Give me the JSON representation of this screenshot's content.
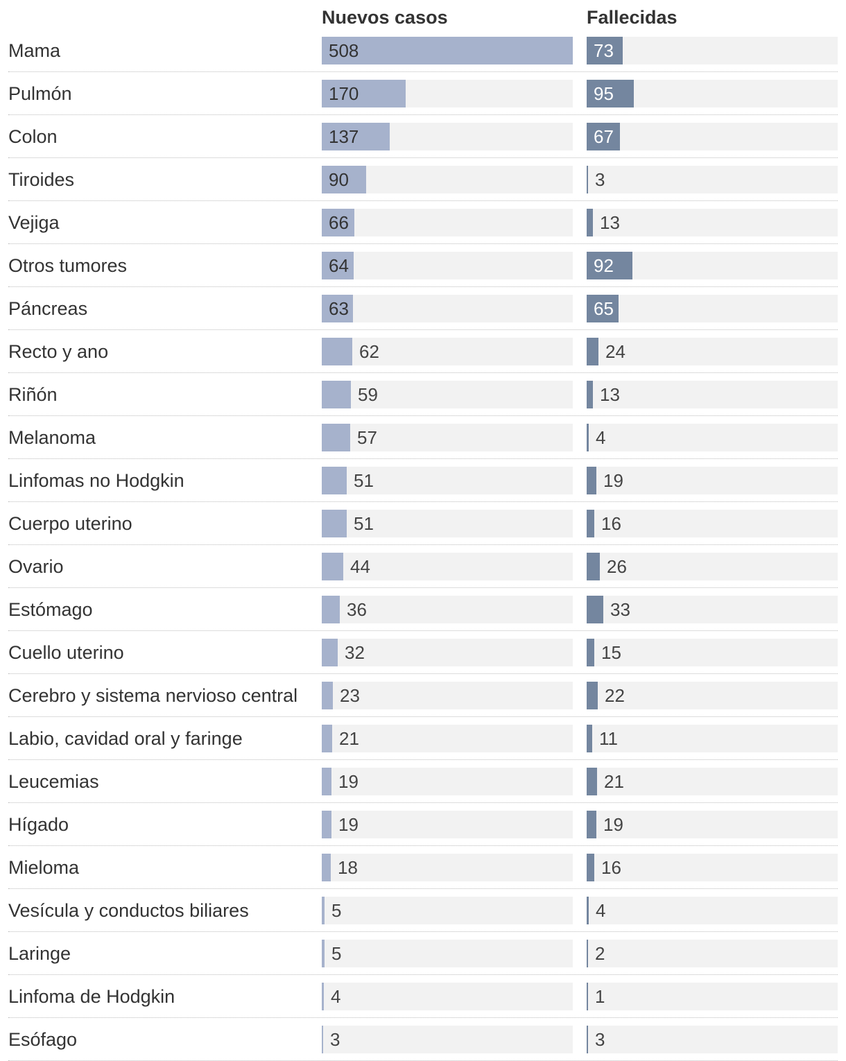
{
  "chart_data": {
    "type": "bar",
    "orientation": "horizontal",
    "columns": [
      {
        "key": "cases",
        "title": "Nuevos casos",
        "color": "#a6b2cc",
        "max": 508
      },
      {
        "key": "deaths",
        "title": "Fallecidas",
        "color": "#74869f",
        "max": 508
      }
    ],
    "categories": [
      "Mama",
      "Pulmón",
      "Colon",
      "Tiroides",
      "Vejiga",
      "Otros tumores",
      "Páncreas",
      "Recto y ano",
      "Riñón",
      "Melanoma",
      "Linfomas no Hodgkin",
      "Cuerpo uterino",
      "Ovario",
      "Estómago",
      "Cuello uterino",
      "Cerebro y sistema nervioso central",
      "Labio, cavidad oral y faringe",
      "Leucemias",
      "Hígado",
      "Mieloma",
      "Vesícula y conductos biliares",
      "Laringe",
      "Linfoma de Hodgkin",
      "Esófago"
    ],
    "series": [
      {
        "name": "Nuevos casos",
        "values": [
          508,
          170,
          137,
          90,
          66,
          64,
          63,
          62,
          59,
          57,
          51,
          51,
          44,
          36,
          32,
          23,
          21,
          19,
          19,
          18,
          5,
          5,
          4,
          3
        ]
      },
      {
        "name": "Fallecidas",
        "values": [
          73,
          95,
          67,
          3,
          13,
          92,
          65,
          24,
          13,
          4,
          19,
          16,
          26,
          33,
          15,
          22,
          11,
          21,
          19,
          16,
          4,
          2,
          1,
          3
        ]
      }
    ]
  }
}
